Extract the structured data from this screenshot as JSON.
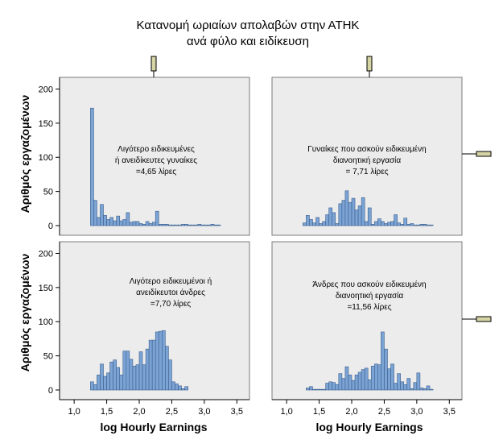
{
  "chart_data": {
    "type": "bar",
    "title_line1": "Κατανομή ωριαίων απολαβών στην ΑΤΗΚ",
    "title_line2": "ανά φύλο και ειδίκευση",
    "xlabel": "log Hourly Earnings",
    "ylabel": "Αριθμός εργαζομένων",
    "xlim": [
      0.85,
      3.62
    ],
    "ylim": [
      0,
      210
    ],
    "x_ticks": [
      "1,0",
      "1,5",
      "2,0",
      "2,5",
      "3,0",
      "3,5"
    ],
    "x_tick_values": [
      1.0,
      1.5,
      2.0,
      2.5,
      3.0,
      3.5
    ],
    "y_ticks": [
      "0",
      "50",
      "100",
      "150",
      "200"
    ],
    "y_tick_values": [
      0,
      50,
      100,
      150,
      200
    ],
    "bin_width": 0.05,
    "colors": {
      "bar": "#7ba3d3",
      "bar_edge": "#3b5f8f",
      "panel_bg": "#ececec",
      "strip": "#d4d4a4"
    },
    "panels": [
      {
        "note": [
          "Λιγότερο ειδικευμένες",
          "ή ανειδίκευτες γυναίκες",
          "=4,65 λίρες"
        ],
        "bin_starts": [
          1.25,
          1.3,
          1.35,
          1.4,
          1.45,
          1.5,
          1.55,
          1.6,
          1.65,
          1.7,
          1.75,
          1.8,
          1.85,
          1.9,
          1.95,
          2.0,
          2.05,
          2.1,
          2.15,
          2.2,
          2.25,
          2.3,
          2.35,
          2.4,
          2.45,
          2.5,
          2.55,
          2.6,
          2.65,
          2.7,
          2.75,
          2.8,
          2.85,
          2.9,
          2.95,
          3.0,
          3.05,
          3.1,
          3.15,
          3.2
        ],
        "values": [
          172,
          37,
          12,
          31,
          15,
          9,
          12,
          7,
          14,
          7,
          9,
          19,
          5,
          6,
          6,
          3,
          2,
          6,
          3,
          5,
          21,
          2,
          2,
          2,
          1,
          1,
          1,
          1,
          2,
          2,
          1,
          1,
          1,
          2,
          1,
          1,
          1,
          2,
          1,
          1
        ]
      },
      {
        "note": [
          "Γυναίκες που ασκούν ειδικευμένη",
          "διανοητική εργασία",
          "= 7,71 λίρες"
        ],
        "bin_starts": [
          1.25,
          1.3,
          1.35,
          1.4,
          1.45,
          1.5,
          1.55,
          1.6,
          1.65,
          1.7,
          1.75,
          1.8,
          1.85,
          1.9,
          1.95,
          2.0,
          2.05,
          2.1,
          2.15,
          2.2,
          2.25,
          2.3,
          2.35,
          2.4,
          2.45,
          2.5,
          2.55,
          2.6,
          2.65,
          2.7,
          2.75,
          2.8,
          2.85,
          2.9,
          2.95,
          3.0,
          3.05,
          3.1,
          3.15,
          3.2
        ],
        "values": [
          4,
          15,
          9,
          4,
          12,
          3,
          6,
          16,
          26,
          19,
          3,
          32,
          37,
          51,
          34,
          40,
          23,
          29,
          41,
          6,
          26,
          2,
          6,
          10,
          6,
          3,
          5,
          6,
          16,
          4,
          2,
          11,
          2,
          3,
          1,
          1,
          2,
          2,
          1,
          1
        ]
      },
      {
        "note": [
          "Λιγότερο ειδικευμένοι ή",
          "ανειδίκευτοι άνδρες",
          "=7,70 λίρες"
        ],
        "bin_starts": [
          1.25,
          1.3,
          1.35,
          1.4,
          1.45,
          1.5,
          1.55,
          1.6,
          1.65,
          1.7,
          1.75,
          1.8,
          1.85,
          1.9,
          1.95,
          2.0,
          2.05,
          2.1,
          2.15,
          2.2,
          2.25,
          2.3,
          2.35,
          2.4,
          2.45,
          2.5,
          2.55,
          2.6,
          2.65,
          2.7
        ],
        "values": [
          12,
          8,
          22,
          38,
          20,
          25,
          41,
          44,
          33,
          22,
          57,
          57,
          45,
          35,
          37,
          56,
          37,
          60,
          73,
          73,
          85,
          86,
          87,
          64,
          44,
          12,
          9,
          6,
          2,
          5
        ]
      },
      {
        "note": [
          "Άνδρες που ασκούν ειδικευμένη",
          "διανοητική εργασία",
          "=11,56 λίρες"
        ],
        "bin_starts": [
          1.3,
          1.35,
          1.4,
          1.45,
          1.5,
          1.55,
          1.6,
          1.65,
          1.7,
          1.75,
          1.8,
          1.85,
          1.9,
          1.95,
          2.0,
          2.05,
          2.1,
          2.15,
          2.2,
          2.25,
          2.3,
          2.35,
          2.4,
          2.45,
          2.5,
          2.55,
          2.6,
          2.65,
          2.7,
          2.75,
          2.8,
          2.85,
          2.9,
          2.95,
          3.0,
          3.05,
          3.1,
          3.15,
          3.2
        ],
        "values": [
          3,
          5,
          1,
          1,
          1,
          1,
          10,
          12,
          11,
          8,
          24,
          17,
          34,
          22,
          14,
          22,
          26,
          30,
          32,
          15,
          35,
          38,
          37,
          85,
          60,
          31,
          38,
          10,
          24,
          12,
          8,
          17,
          2,
          11,
          25,
          3,
          2,
          6,
          1
        ]
      }
    ]
  }
}
